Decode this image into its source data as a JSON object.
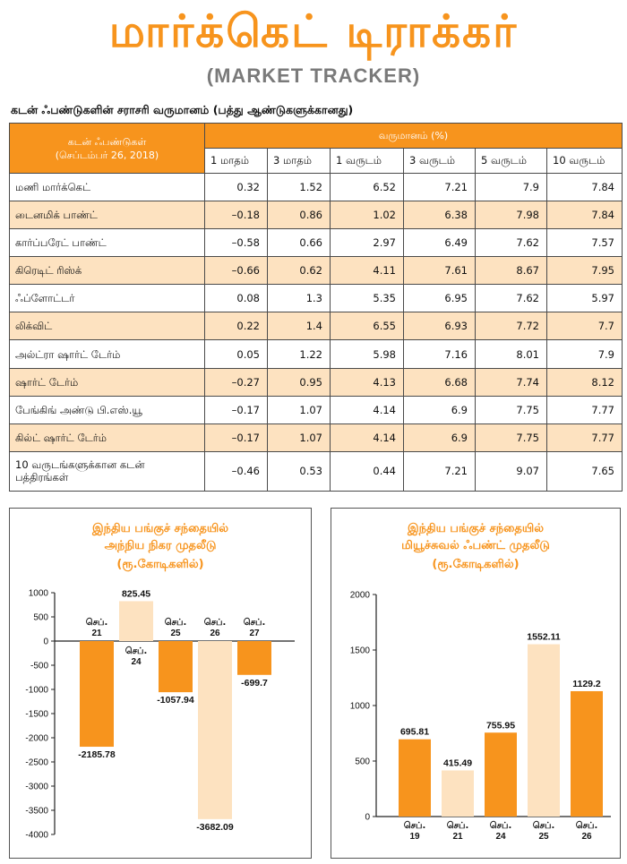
{
  "header": {
    "title": "மார்க்கெட் டிராக்கர்",
    "subtitle": "(MARKET TRACKER)"
  },
  "table": {
    "caption": "கடன் ஃபண்டுகளின் சராசரி வருமானம் (பத்து ஆண்டுகளுக்கானது)",
    "first_col_header_line1": "கடன் ஃபண்டுகள்",
    "first_col_header_line2": "(செப்டம்பர் 26, 2018)",
    "group_header": "வருமானம் (%)",
    "period_headers": [
      "1 மாதம்",
      "3 மாதம்",
      "1 வருடம்",
      "3 வருடம்",
      "5 வருடம்",
      "10 வருடம்"
    ],
    "rows": [
      {
        "name": "மணி மார்க்கெட்",
        "values": [
          "0.32",
          "1.52",
          "6.52",
          "7.21",
          "7.9",
          "7.84"
        ]
      },
      {
        "name": "டைனமிக் பாண்ட்",
        "values": [
          "–0.18",
          "0.86",
          "1.02",
          "6.38",
          "7.98",
          "7.84"
        ]
      },
      {
        "name": "கார்ப்பரேட் பாண்ட்",
        "values": [
          "–0.58",
          "0.66",
          "2.97",
          "6.49",
          "7.62",
          "7.57"
        ]
      },
      {
        "name": "கிரெடிட் ரிஸ்க்",
        "values": [
          "–0.66",
          "0.62",
          "4.11",
          "7.61",
          "8.67",
          "7.95"
        ]
      },
      {
        "name": "ஃப்ளோட்டர்",
        "values": [
          "0.08",
          "1.3",
          "5.35",
          "6.95",
          "7.62",
          "5.97"
        ]
      },
      {
        "name": "லிக்விட்",
        "values": [
          "0.22",
          "1.4",
          "6.55",
          "6.93",
          "7.72",
          "7.7"
        ]
      },
      {
        "name": "அல்ட்ரா ஷார்ட் டேர்ம்",
        "values": [
          "0.05",
          "1.22",
          "5.98",
          "7.16",
          "8.01",
          "7.9"
        ]
      },
      {
        "name": "ஷார்ட் டேர்ம்",
        "values": [
          "–0.27",
          "0.95",
          "4.13",
          "6.68",
          "7.74",
          "8.12"
        ]
      },
      {
        "name": "பேங்கிங் அண்டு பி.எஸ்.யூ",
        "values": [
          "–0.17",
          "1.07",
          "4.14",
          "6.9",
          "7.75",
          "7.77"
        ]
      },
      {
        "name": "கில்ட் ஷார்ட் டேர்ம்",
        "values": [
          "–0.17",
          "1.07",
          "4.14",
          "6.9",
          "7.75",
          "7.77"
        ]
      },
      {
        "name_line1": "10 வருடங்களுக்கான கடன்",
        "name_line2": "பத்திரங்கள்",
        "values": [
          "–0.46",
          "0.53",
          "0.44",
          "7.21",
          "9.07",
          "7.65"
        ]
      }
    ]
  },
  "colors": {
    "accent_orange": "#f7941d",
    "light_orange": "#fde2c0",
    "subtitle_gray": "#7a7a7a"
  },
  "chart_data": [
    {
      "type": "bar",
      "title_lines": [
        "இந்திய பங்குச் சந்தையில்",
        "அந்நிய நிகர முதலீடு",
        "(ரூ.கோடிகளில்)"
      ],
      "categories": [
        {
          "line1": "செப்.",
          "line2": "21"
        },
        {
          "line1": "செப்.",
          "line2": "24"
        },
        {
          "line1": "செப்.",
          "line2": "25"
        },
        {
          "line1": "செப்.",
          "line2": "26"
        },
        {
          "line1": "செப்.",
          "line2": "27"
        }
      ],
      "values": [
        -2185.78,
        825.45,
        -1057.94,
        -3682.09,
        -699.7
      ],
      "value_labels": [
        "-2185.78",
        "825.45",
        "-1057.94",
        "-3682.09",
        "-699.7"
      ],
      "bar_colors": [
        "#f7941d",
        "#fde2c0",
        "#f7941d",
        "#fde2c0",
        "#f7941d"
      ],
      "ylim": [
        -4000,
        1000
      ],
      "yticks": [
        "1000",
        "500",
        "0",
        "-500",
        "-1000",
        "-1500",
        "-2000",
        "-2500",
        "-3000",
        "-3500",
        "-4000"
      ],
      "grid": false
    },
    {
      "type": "bar",
      "title_lines": [
        "இந்திய பங்குச் சந்தையில்",
        "மியூச்சுவல் ஃபண்ட் முதலீடு",
        "(ரூ.கோடிகளில்)"
      ],
      "categories": [
        {
          "line1": "செப்.",
          "line2": "19"
        },
        {
          "line1": "செப்.",
          "line2": "21"
        },
        {
          "line1": "செப்.",
          "line2": "24"
        },
        {
          "line1": "செப்.",
          "line2": "25"
        },
        {
          "line1": "செப்.",
          "line2": "26"
        }
      ],
      "values": [
        695.81,
        415.49,
        755.95,
        1552.11,
        1129.2
      ],
      "value_labels": [
        "695.81",
        "415.49",
        "755.95",
        "1552.11",
        "1129.2"
      ],
      "bar_colors": [
        "#f7941d",
        "#fde2c0",
        "#f7941d",
        "#fde2c0",
        "#f7941d"
      ],
      "ylim": [
        0,
        2000
      ],
      "yticks": [
        "2000",
        "1500",
        "1000",
        "500",
        "0"
      ],
      "grid": false
    }
  ]
}
